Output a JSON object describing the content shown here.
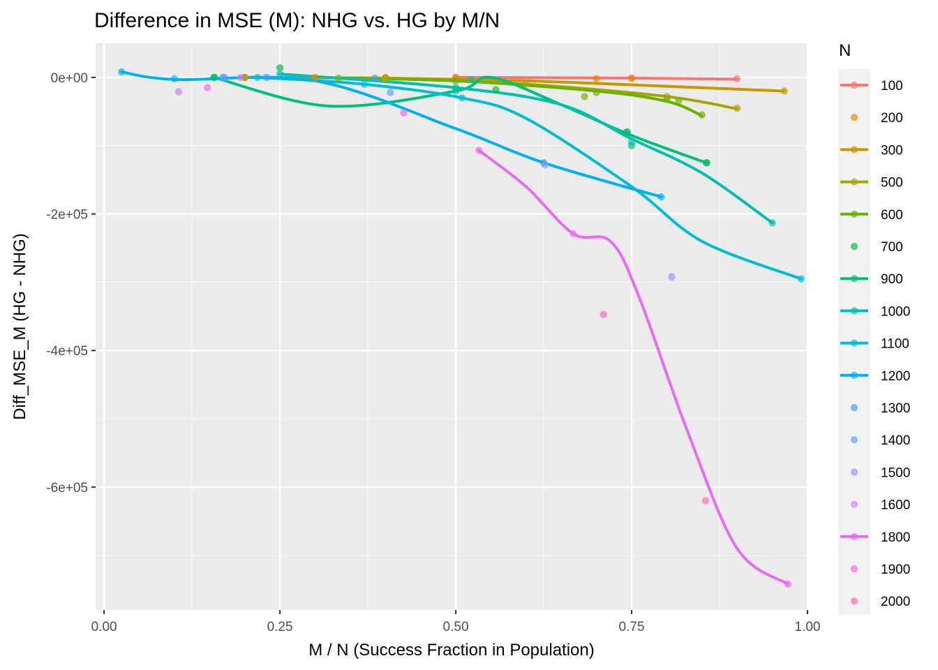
{
  "chart_data": {
    "type": "scatter",
    "title": "Difference in MSE (M): NHG vs. HG by M/N",
    "xlabel": "M / N (Success Fraction in Population)",
    "ylabel": "Diff_MSE_M (HG - NHG)",
    "xlim": [
      -0.012,
      1.0
    ],
    "ylim": [
      -780000,
      50000
    ],
    "x_ticks": [
      {
        "value": 0.0,
        "label": "0.00"
      },
      {
        "value": 0.25,
        "label": "0.25"
      },
      {
        "value": 0.5,
        "label": "0.50"
      },
      {
        "value": 0.75,
        "label": "0.75"
      },
      {
        "value": 1.0,
        "label": "1.00"
      }
    ],
    "y_ticks": [
      {
        "value": 0,
        "label": "0e+00"
      },
      {
        "value": -200000,
        "label": "-2e+05"
      },
      {
        "value": -400000,
        "label": "-4e+05"
      },
      {
        "value": -600000,
        "label": "-6e+05"
      }
    ],
    "grid": true,
    "legend_title": "N",
    "legend_position": "right",
    "series": [
      {
        "name": "100",
        "color": "#F8766D",
        "smooth": true,
        "points": [
          [
            0.5,
            0
          ],
          [
            0.75,
            -1000
          ],
          [
            0.9,
            -2000
          ]
        ],
        "curve": [
          [
            0.5,
            0
          ],
          [
            0.75,
            -1000
          ],
          [
            0.9,
            -2500
          ]
        ]
      },
      {
        "name": "200",
        "color": "#E58700",
        "smooth": false,
        "points": [
          [
            0.2,
            0
          ],
          [
            0.3,
            0
          ],
          [
            0.4,
            0
          ],
          [
            0.5,
            0
          ],
          [
            0.7,
            -2000
          ],
          [
            0.75,
            -1000
          ]
        ]
      },
      {
        "name": "300",
        "color": "#C99800",
        "smooth": true,
        "points": [
          [
            0.2,
            0
          ],
          [
            0.4,
            -1000
          ],
          [
            0.967,
            -20000
          ]
        ],
        "curve": [
          [
            0.2,
            0
          ],
          [
            0.4,
            -1000
          ],
          [
            0.6,
            -5000
          ],
          [
            0.8,
            -13000
          ],
          [
            0.967,
            -20000
          ]
        ]
      },
      {
        "name": "500",
        "color": "#A3A500",
        "smooth": true,
        "points": [
          [
            0.2,
            0
          ],
          [
            0.4,
            -1000
          ],
          [
            0.6,
            -10000
          ],
          [
            0.8,
            -28000
          ],
          [
            0.9,
            -45000
          ]
        ],
        "curve": [
          [
            0.2,
            0
          ],
          [
            0.4,
            -2000
          ],
          [
            0.6,
            -10000
          ],
          [
            0.8,
            -28000
          ],
          [
            0.9,
            -46000
          ]
        ]
      },
      {
        "name": "600",
        "color": "#6BB100",
        "smooth": true,
        "points": [
          [
            0.333,
            -1000
          ],
          [
            0.5,
            -5000
          ],
          [
            0.683,
            -28000
          ],
          [
            0.7,
            -22000
          ],
          [
            0.8,
            -32000
          ],
          [
            0.817,
            -34000
          ],
          [
            0.85,
            -55000
          ]
        ],
        "curve": [
          [
            0.333,
            -1000
          ],
          [
            0.5,
            -5000
          ],
          [
            0.7,
            -20000
          ],
          [
            0.8,
            -35000
          ],
          [
            0.85,
            -56000
          ]
        ]
      },
      {
        "name": "700",
        "color": "#00BA38",
        "smooth": false,
        "points": [
          [
            0.157,
            0
          ],
          [
            0.25,
            14000
          ],
          [
            0.557,
            -18000
          ],
          [
            0.743,
            -80000
          ],
          [
            0.857,
            -125000
          ]
        ]
      },
      {
        "name": "900",
        "color": "#00BF7D",
        "smooth": true,
        "points": [
          [
            0.156,
            0
          ],
          [
            0.5,
            -15000
          ],
          [
            0.744,
            -80000
          ],
          [
            0.75,
            -100000
          ],
          [
            0.856,
            -125000
          ]
        ],
        "curve": [
          [
            0.156,
            0
          ],
          [
            0.32,
            -42000
          ],
          [
            0.5,
            -20000
          ],
          [
            0.55,
            0
          ],
          [
            0.65,
            -40000
          ],
          [
            0.75,
            -85000
          ],
          [
            0.856,
            -125000
          ]
        ]
      },
      {
        "name": "1000",
        "color": "#00C0AF",
        "smooth": true,
        "points": [
          [
            0.25,
            5000
          ],
          [
            0.5,
            -20000
          ],
          [
            0.522,
            -3000
          ],
          [
            0.75,
            -95000
          ],
          [
            0.95,
            -213000
          ]
        ],
        "curve": [
          [
            0.25,
            5000
          ],
          [
            0.5,
            -15000
          ],
          [
            0.65,
            -40000
          ],
          [
            0.75,
            -90000
          ],
          [
            0.85,
            -140000
          ],
          [
            0.95,
            -213000
          ]
        ]
      },
      {
        "name": "1100",
        "color": "#00BCD8",
        "smooth": true,
        "points": [
          [
            0.218,
            0
          ],
          [
            0.37,
            -10000
          ],
          [
            0.509,
            -30000
          ],
          [
            0.991,
            -295000
          ]
        ],
        "curve": [
          [
            0.218,
            0
          ],
          [
            0.37,
            -10000
          ],
          [
            0.509,
            -30000
          ],
          [
            0.6,
            -60000
          ],
          [
            0.75,
            -160000
          ],
          [
            0.85,
            -240000
          ],
          [
            0.991,
            -295000
          ]
        ]
      },
      {
        "name": "1200",
        "color": "#00B0F6",
        "smooth": true,
        "points": [
          [
            0.025,
            8000
          ],
          [
            0.1,
            -2000
          ],
          [
            0.625,
            -125000
          ],
          [
            0.792,
            -175000
          ]
        ],
        "curve": [
          [
            0.025,
            8000
          ],
          [
            0.1,
            -3000
          ],
          [
            0.3,
            -5000
          ],
          [
            0.5,
            -75000
          ],
          [
            0.625,
            -125000
          ],
          [
            0.792,
            -175000
          ]
        ]
      },
      {
        "name": "1300",
        "color": "#35A2FF",
        "smooth": false,
        "points": [
          [
            0.169,
            0
          ],
          [
            0.231,
            0
          ],
          [
            0.385,
            -1000
          ]
        ]
      },
      {
        "name": "1400",
        "color": "#619CFF",
        "smooth": false,
        "points": [
          [
            0.171,
            0
          ],
          [
            0.407,
            -22000
          ]
        ]
      },
      {
        "name": "1500",
        "color": "#9590FF",
        "smooth": false,
        "points": [
          [
            0.627,
            -128000
          ],
          [
            0.807,
            -292000
          ]
        ]
      },
      {
        "name": "1600",
        "color": "#C77CFF",
        "smooth": false,
        "points": [
          [
            0.106,
            -21000
          ],
          [
            0.194,
            0
          ]
        ]
      },
      {
        "name": "1800",
        "color": "#E76BF3",
        "smooth": true,
        "points": [
          [
            0.533,
            -107000
          ],
          [
            0.667,
            -229000
          ],
          [
            0.972,
            -742000
          ]
        ],
        "curve": [
          [
            0.533,
            -107000
          ],
          [
            0.6,
            -160000
          ],
          [
            0.667,
            -229000
          ],
          [
            0.72,
            -240000
          ],
          [
            0.76,
            -320000
          ],
          [
            0.83,
            -520000
          ],
          [
            0.9,
            -690000
          ],
          [
            0.972,
            -742000
          ]
        ]
      },
      {
        "name": "1900",
        "color": "#FA62DB",
        "smooth": false,
        "points": [
          [
            0.147,
            -15000
          ],
          [
            0.426,
            -52000
          ]
        ]
      },
      {
        "name": "2000",
        "color": "#FF62BC",
        "smooth": false,
        "points": [
          [
            0.71,
            -347000
          ],
          [
            0.855,
            -620000
          ]
        ]
      }
    ]
  }
}
